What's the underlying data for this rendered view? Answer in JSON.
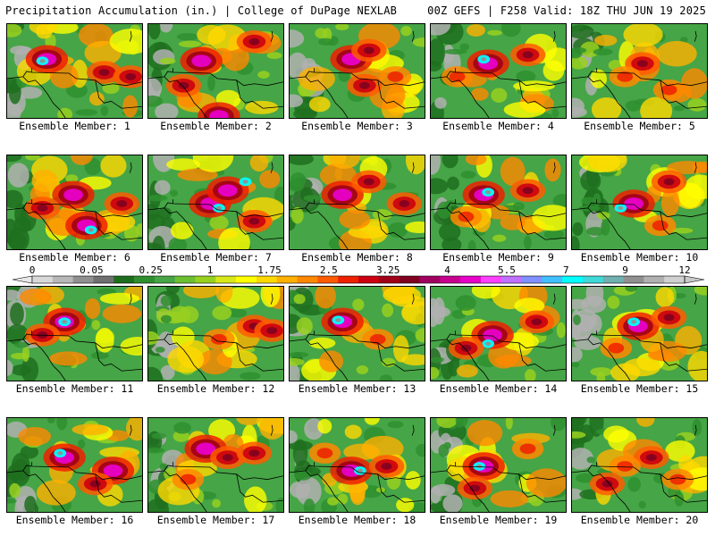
{
  "header": {
    "left": "Precipitation Accumulation (in.) | College of DuPage NEXLAB",
    "right": "00Z GEFS | F258 Valid: 18Z THU JUN 19 2025"
  },
  "colorbar": {
    "tick_labels": [
      "0",
      "0.05",
      "0.25",
      "1",
      "1.75",
      "2.5",
      "3.25",
      "4",
      "5.5",
      "7",
      "9",
      "12"
    ],
    "colors": [
      "#d8d8d8",
      "#b8b8b8",
      "#909090",
      "#707070",
      "#1e6e1e",
      "#2f8f2f",
      "#46a546",
      "#6cc030",
      "#98d020",
      "#d8e818",
      "#ffff00",
      "#ffd800",
      "#ffb000",
      "#ff8800",
      "#ff5a00",
      "#ee2000",
      "#cc0010",
      "#a00018",
      "#800020",
      "#a00060",
      "#c80090",
      "#e800c8",
      "#ff40ff",
      "#c070ff",
      "#8090ff",
      "#40c0ff",
      "#00ffff",
      "#40d8d8",
      "#70b0b0",
      "#909090",
      "#b0b0b0",
      "#d0d0d0"
    ]
  },
  "members": [
    {
      "label": "Ensemble Member: 1"
    },
    {
      "label": "Ensemble Member: 2"
    },
    {
      "label": "Ensemble Member: 3"
    },
    {
      "label": "Ensemble Member: 4"
    },
    {
      "label": "Ensemble Member: 5"
    },
    {
      "label": "Ensemble Member: 6"
    },
    {
      "label": "Ensemble Member: 7"
    },
    {
      "label": "Ensemble Member: 8"
    },
    {
      "label": "Ensemble Member: 9"
    },
    {
      "label": "Ensemble Member: 10"
    },
    {
      "label": "Ensemble Member: 11"
    },
    {
      "label": "Ensemble Member: 12"
    },
    {
      "label": "Ensemble Member: 13"
    },
    {
      "label": "Ensemble Member: 14"
    },
    {
      "label": "Ensemble Member: 15"
    },
    {
      "label": "Ensemble Member: 16"
    },
    {
      "label": "Ensemble Member: 17"
    },
    {
      "label": "Ensemble Member: 18"
    },
    {
      "label": "Ensemble Member: 19"
    },
    {
      "label": "Ensemble Member: 20"
    }
  ]
}
